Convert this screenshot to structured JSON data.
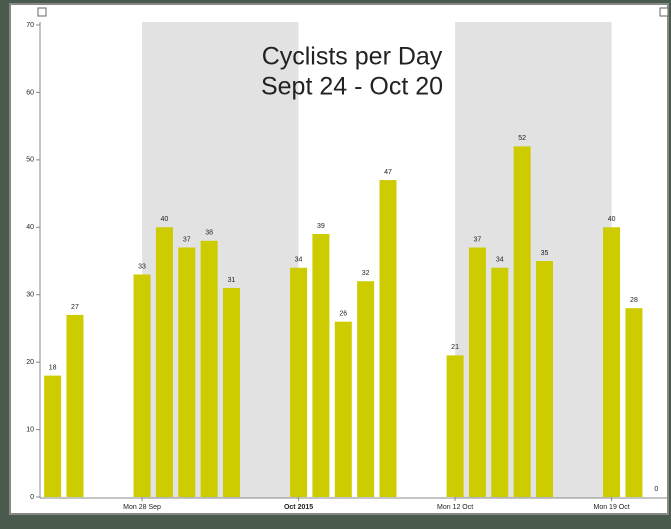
{
  "chart_data": {
    "type": "bar",
    "title": "Cyclists per Day",
    "subtitle": "Sept 24 - Oct 20",
    "categories": [
      null,
      null,
      null,
      null,
      "Mon 28 Sep",
      null,
      null,
      null,
      null,
      null,
      null,
      "Oct 2015",
      null,
      null,
      null,
      null,
      null,
      null,
      "Mon 12 Oct",
      null,
      null,
      null,
      null,
      null,
      null,
      "Mon 19 Oct",
      null,
      null
    ],
    "values": [
      18,
      27,
      null,
      null,
      33,
      40,
      37,
      38,
      31,
      null,
      null,
      34,
      39,
      26,
      32,
      47,
      null,
      null,
      21,
      37,
      34,
      52,
      35,
      null,
      null,
      40,
      28,
      0
    ],
    "color": "#cccc00",
    "ylim": [
      0,
      70
    ],
    "yticks": [
      0,
      10,
      20,
      30,
      40,
      50,
      60,
      70
    ],
    "grid": false
  }
}
